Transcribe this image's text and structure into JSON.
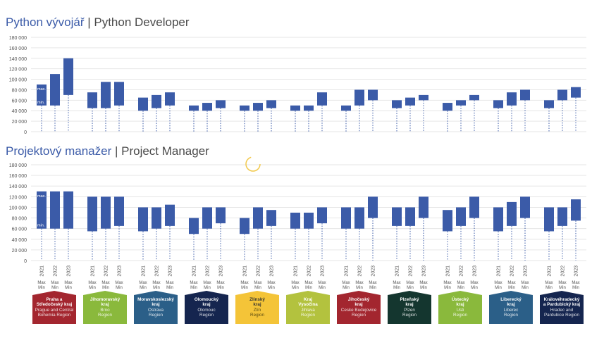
{
  "titles": {
    "python": {
      "cz": "Python vývojář",
      "sep": " | ",
      "en": "Python Developer"
    },
    "pm": {
      "cz": "Projektový manažer",
      "sep": "  | ",
      "en": "Project Manager"
    }
  },
  "colors": {
    "bar": "#3b5ba8",
    "grid": "#e6e6e6",
    "axis_text": "#555555",
    "dotted": "#3b5ba8"
  },
  "year_labels": [
    "2021",
    "2022",
    "2023"
  ],
  "max_label": "Max",
  "min_label": "Min",
  "marker_max": "max.",
  "marker_min": "min.",
  "regions": [
    {
      "name_cz": "Praha a Středočeský kraj",
      "name_en": "Prague and Central Bohemia Region",
      "color": "#a3262f"
    },
    {
      "name_cz": "Jihomoravský kraj",
      "name_en": "Brno Region",
      "color": "#8ab93c"
    },
    {
      "name_cz": "Moravskoslezský kraj",
      "name_en": "Ostrava Region",
      "color": "#2b5f88"
    },
    {
      "name_cz": "Olomoucký kraj",
      "name_en": "Olomouc Region",
      "color": "#15254f"
    },
    {
      "name_cz": "Zlínský kraj",
      "name_en": "Zlín Region",
      "color": "#f4c438"
    },
    {
      "name_cz": "Kraj Vysočina",
      "name_en": "Jihlava Region",
      "color": "#b3c23e"
    },
    {
      "name_cz": "Jihočeský kraj",
      "name_en": "Ceske Budejovice Region",
      "color": "#a3262f"
    },
    {
      "name_cz": "Plzeňský kraj",
      "name_en": "Plzen Region",
      "color": "#14362f"
    },
    {
      "name_cz": "Ústecký kraj",
      "name_en": "Usti Region",
      "color": "#8ab93c"
    },
    {
      "name_cz": "Liberecký kraj",
      "name_en": "Liberec Region",
      "color": "#2b5f88"
    },
    {
      "name_cz": "Královéhradecký a Pardubický kraj",
      "name_en": "Hradec and Pardubice Region",
      "color": "#15254f"
    }
  ],
  "chart_data": [
    {
      "type": "bar",
      "title": "Python vývojář | Python Developer",
      "ylim": [
        0,
        180000
      ],
      "yticks": [
        "0",
        "20 000",
        "40 000",
        "60 000",
        "80 000",
        "100 000",
        "120 000",
        "140 000",
        "160 000",
        "180 000"
      ],
      "ytick_values": [
        0,
        20000,
        40000,
        60000,
        80000,
        100000,
        120000,
        140000,
        160000,
        180000
      ],
      "grid": true,
      "series": [
        {
          "region": "Praha a Středočeský kraj",
          "min": [
            50000,
            50000,
            70000
          ],
          "max": [
            90000,
            110000,
            140000
          ]
        },
        {
          "region": "Jihomoravský kraj",
          "min": [
            45000,
            45000,
            50000
          ],
          "max": [
            75000,
            95000,
            95000
          ]
        },
        {
          "region": "Moravskoslezský kraj",
          "min": [
            40000,
            45000,
            50000
          ],
          "max": [
            65000,
            70000,
            75000
          ]
        },
        {
          "region": "Olomoucký kraj",
          "min": [
            40000,
            40000,
            45000
          ],
          "max": [
            50000,
            55000,
            60000
          ]
        },
        {
          "region": "Zlínský kraj",
          "min": [
            40000,
            40000,
            45000
          ],
          "max": [
            50000,
            55000,
            60000
          ]
        },
        {
          "region": "Kraj Vysočina",
          "min": [
            40000,
            40000,
            50000
          ],
          "max": [
            50000,
            50000,
            75000
          ]
        },
        {
          "region": "Jihočeský kraj",
          "min": [
            40000,
            50000,
            60000
          ],
          "max": [
            50000,
            80000,
            80000
          ]
        },
        {
          "region": "Plzeňský kraj",
          "min": [
            45000,
            50000,
            60000
          ],
          "max": [
            60000,
            65000,
            70000
          ]
        },
        {
          "region": "Ústecký kraj",
          "min": [
            40000,
            50000,
            60000
          ],
          "max": [
            55000,
            60000,
            70000
          ]
        },
        {
          "region": "Liberecký kraj",
          "min": [
            45000,
            50000,
            60000
          ],
          "max": [
            60000,
            75000,
            80000
          ]
        },
        {
          "region": "Královéhradecký a Pardubický kraj",
          "min": [
            45000,
            60000,
            65000
          ],
          "max": [
            60000,
            80000,
            85000
          ]
        }
      ]
    },
    {
      "type": "bar",
      "title": "Projektový manažer | Project Manager",
      "ylim": [
        0,
        180000
      ],
      "yticks": [
        "0",
        "20 000",
        "40 000",
        "60 000",
        "80 000",
        "100 000",
        "120 000",
        "140 000",
        "160 000",
        "180 000"
      ],
      "ytick_values": [
        0,
        20000,
        40000,
        60000,
        80000,
        100000,
        120000,
        140000,
        160000,
        180000
      ],
      "grid": true,
      "series": [
        {
          "region": "Praha a Středočeský kraj",
          "min": [
            60000,
            60000,
            60000
          ],
          "max": [
            130000,
            130000,
            130000
          ]
        },
        {
          "region": "Jihomoravský kraj",
          "min": [
            55000,
            60000,
            65000
          ],
          "max": [
            120000,
            120000,
            120000
          ]
        },
        {
          "region": "Moravskoslezský kraj",
          "min": [
            55000,
            60000,
            65000
          ],
          "max": [
            100000,
            100000,
            105000
          ]
        },
        {
          "region": "Olomoucký kraj",
          "min": [
            50000,
            60000,
            70000
          ],
          "max": [
            80000,
            100000,
            100000
          ]
        },
        {
          "region": "Zlínský kraj",
          "min": [
            50000,
            60000,
            65000
          ],
          "max": [
            80000,
            100000,
            95000
          ]
        },
        {
          "region": "Kraj Vysočina",
          "min": [
            60000,
            60000,
            70000
          ],
          "max": [
            90000,
            90000,
            100000
          ]
        },
        {
          "region": "Jihočeský kraj",
          "min": [
            60000,
            60000,
            80000
          ],
          "max": [
            100000,
            100000,
            120000
          ]
        },
        {
          "region": "Plzeňský kraj",
          "min": [
            65000,
            65000,
            80000
          ],
          "max": [
            100000,
            100000,
            120000
          ]
        },
        {
          "region": "Ústecký kraj",
          "min": [
            55000,
            65000,
            80000
          ],
          "max": [
            95000,
            100000,
            120000
          ]
        },
        {
          "region": "Liberecký kraj",
          "min": [
            55000,
            65000,
            80000
          ],
          "max": [
            100000,
            110000,
            120000
          ]
        },
        {
          "region": "Královéhradecký a Pardubický kraj",
          "min": [
            55000,
            65000,
            75000
          ],
          "max": [
            100000,
            100000,
            115000
          ]
        }
      ]
    }
  ]
}
